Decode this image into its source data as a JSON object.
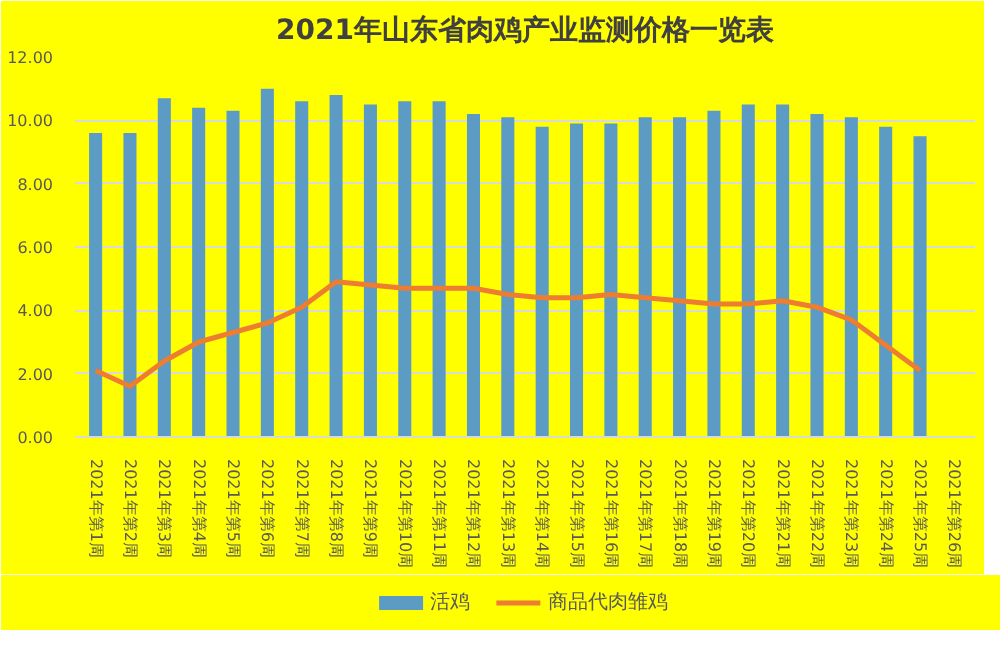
{
  "chart_data": {
    "type": "bar",
    "title": "2021年山东省肉鸡产业监测价格一览表",
    "categories": [
      "2021年第1周",
      "2021年第2周",
      "2021年第3周",
      "2021年第4周",
      "2021年第5周",
      "2021年第6周",
      "2021年第7周",
      "2021年第8周",
      "2021年第9周",
      "2021年第10周",
      "2021年第11周",
      "2021年第12周",
      "2021年第13周",
      "2021年第14周",
      "2021年第15周",
      "2021年第16周",
      "2021年第17周",
      "2021年第18周",
      "2021年第19周",
      "2021年第20周",
      "2021年第21周",
      "2021年第22周",
      "2021年第23周",
      "2021年第24周",
      "2021年第25周",
      "2021年第26周"
    ],
    "series": [
      {
        "name": "活鸡",
        "color": "#5b9bc4",
        "values": [
          9.6,
          9.6,
          10.7,
          10.4,
          10.3,
          11.0,
          10.6,
          10.8,
          10.5,
          10.6,
          10.6,
          10.2,
          10.1,
          9.8,
          9.9,
          9.9,
          10.1,
          10.1,
          10.3,
          10.5,
          10.5,
          10.2,
          10.1,
          9.8,
          9.5,
          null
        ]
      },
      {
        "name": "商品代肉雏鸡",
        "type": "line",
        "color": "#ed7d31",
        "values": [
          2.1,
          1.6,
          2.4,
          3.0,
          3.3,
          3.6,
          4.1,
          4.9,
          4.8,
          4.7,
          4.7,
          4.7,
          4.5,
          4.4,
          4.4,
          4.5,
          4.4,
          4.3,
          4.2,
          4.2,
          4.3,
          4.1,
          3.7,
          2.9,
          2.1,
          null
        ]
      }
    ],
    "ylim": [
      0,
      12
    ],
    "yticks": [
      {
        "value": 0,
        "label": "0.00"
      },
      {
        "value": 2,
        "label": "2.00"
      },
      {
        "value": 4,
        "label": "4.00"
      },
      {
        "value": 6,
        "label": "6.00"
      },
      {
        "value": 8,
        "label": "8.00"
      },
      {
        "value": 10,
        "label": "10.00"
      },
      {
        "value": 12,
        "label": "12.00"
      }
    ],
    "grid": "y",
    "legend": "bottom"
  }
}
